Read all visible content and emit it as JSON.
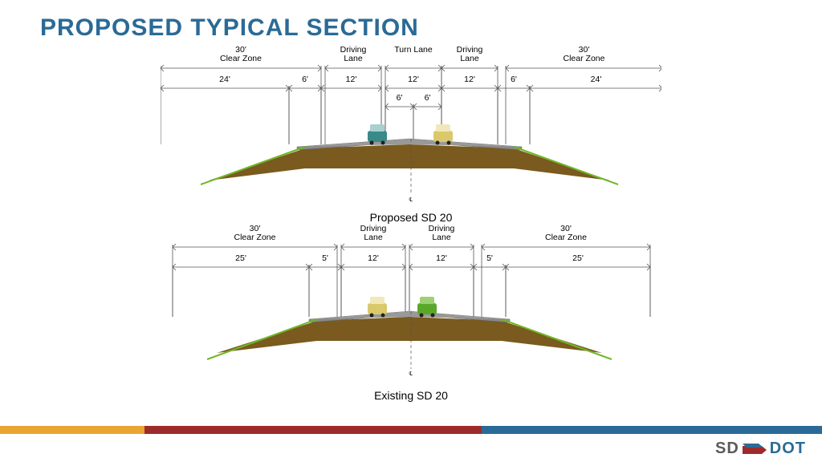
{
  "title": "PROPOSED TYPICAL SECTION",
  "title_color": "#2a6a96",
  "footer_colors": [
    "#e8a531",
    "#9d2b2b",
    "#2a6a96"
  ],
  "footer_widths": [
    180,
    420,
    424
  ],
  "logo": {
    "sd": "SD",
    "dot": "DOT",
    "sd_color": "#5b5b5b",
    "dot_color": "#2a6a96",
    "flag_red": "#9d2b2b",
    "flag_blue": "#2a6a96"
  },
  "colors": {
    "dim_line": "#555555",
    "road_surface": "#8a8a8a",
    "earth": "#7a5a1e",
    "slope_line": "#6fb82a",
    "car1_body": "#3a8a8a",
    "car2_body": "#d9c96a",
    "car3_body": "#d9c96a",
    "car4_body": "#5aa82a"
  },
  "proposed": {
    "title": "Proposed SD 20",
    "row1": [
      "30'\nClear Zone",
      "Driving\nLane",
      "Turn Lane",
      "Driving\nLane",
      "30'\nClear Zone"
    ],
    "row1_x": [
      0,
      205,
      280,
      350,
      430
    ],
    "row1_w": [
      200,
      70,
      70,
      70,
      195
    ],
    "row2": [
      "24'",
      "6'",
      "12'",
      "12'",
      "12'",
      "6'",
      "24'"
    ],
    "row2_x": [
      0,
      160,
      200,
      280,
      350,
      420,
      460
    ],
    "row2_w": [
      160,
      40,
      75,
      70,
      70,
      40,
      165
    ],
    "row3": [
      "6'",
      "6'"
    ],
    "row3_x": [
      280,
      315
    ],
    "row3_w": [
      35,
      35
    ]
  },
  "existing": {
    "title": "Existing SD 20",
    "row1": [
      "30'\nClear Zone",
      "Driving\nLane",
      "Driving\nLane",
      "30'\nClear Zone"
    ],
    "row1_x": [
      15,
      225,
      310,
      400
    ],
    "row1_w": [
      205,
      80,
      80,
      210
    ],
    "row2": [
      "25'",
      "5'",
      "12'",
      "12'",
      "5'",
      "25'"
    ],
    "row2_x": [
      15,
      185,
      225,
      310,
      390,
      430
    ],
    "row2_w": [
      170,
      40,
      80,
      80,
      40,
      180
    ]
  }
}
